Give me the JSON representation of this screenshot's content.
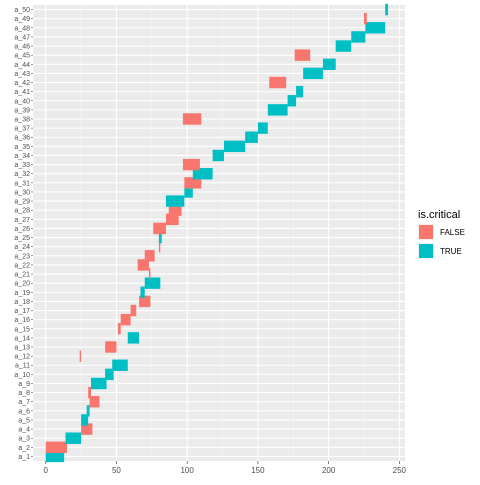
{
  "chart_data": {
    "type": "gantt",
    "xlim": [
      -9,
      254
    ],
    "x_ticks": [
      0,
      50,
      100,
      150,
      200,
      250
    ],
    "grid": true,
    "legend_position": "right",
    "legend": {
      "title": "is.critical",
      "entries": [
        {
          "label": "FALSE",
          "color": "#F8766D"
        },
        {
          "label": "TRUE",
          "color": "#00BFC4"
        }
      ]
    },
    "tasks": [
      {
        "label": "a_1",
        "start": 0,
        "end": 13,
        "critical": true
      },
      {
        "label": "a_2",
        "start": 0,
        "end": 15,
        "critical": false
      },
      {
        "label": "a_3",
        "start": 14,
        "end": 25,
        "critical": true
      },
      {
        "label": "a_4",
        "start": 25,
        "end": 33,
        "critical": false
      },
      {
        "label": "a_5",
        "start": 25,
        "end": 30,
        "critical": true
      },
      {
        "label": "a_6",
        "start": 29,
        "end": 31,
        "critical": true
      },
      {
        "label": "a_7",
        "start": 31,
        "end": 38,
        "critical": false
      },
      {
        "label": "a_8",
        "start": 30,
        "end": 32,
        "critical": false
      },
      {
        "label": "a_9",
        "start": 32,
        "end": 43,
        "critical": true
      },
      {
        "label": "a_10",
        "start": 42,
        "end": 48,
        "critical": true
      },
      {
        "label": "a_11",
        "start": 47,
        "end": 58,
        "critical": true
      },
      {
        "label": "a_12",
        "start": 24,
        "end": 25,
        "critical": false
      },
      {
        "label": "a_13",
        "start": 42,
        "end": 50,
        "critical": false
      },
      {
        "label": "a_14",
        "start": 58,
        "end": 66,
        "critical": true
      },
      {
        "label": "a_15",
        "start": 51,
        "end": 53,
        "critical": false
      },
      {
        "label": "a_16",
        "start": 53,
        "end": 60,
        "critical": false
      },
      {
        "label": "a_17",
        "start": 60,
        "end": 64,
        "critical": false
      },
      {
        "label": "a_18",
        "start": 66,
        "end": 74,
        "critical": false
      },
      {
        "label": "a_19",
        "start": 67,
        "end": 70,
        "critical": true
      },
      {
        "label": "a_20",
        "start": 70,
        "end": 81,
        "critical": true
      },
      {
        "label": "a_21",
        "start": 73,
        "end": 74,
        "critical": false
      },
      {
        "label": "a_22",
        "start": 65,
        "end": 73,
        "critical": false
      },
      {
        "label": "a_23",
        "start": 70,
        "end": 77,
        "critical": false
      },
      {
        "label": "a_24",
        "start": 80,
        "end": 81,
        "critical": false
      },
      {
        "label": "a_25",
        "start": 80,
        "end": 82,
        "critical": true
      },
      {
        "label": "a_26",
        "start": 76,
        "end": 85,
        "critical": false
      },
      {
        "label": "a_27",
        "start": 85,
        "end": 94,
        "critical": false
      },
      {
        "label": "a_28",
        "start": 87,
        "end": 96,
        "critical": false
      },
      {
        "label": "a_29",
        "start": 85,
        "end": 98,
        "critical": true
      },
      {
        "label": "a_30",
        "start": 98,
        "end": 104,
        "critical": true
      },
      {
        "label": "a_31",
        "start": 98,
        "end": 110,
        "critical": false
      },
      {
        "label": "a_32",
        "start": 104,
        "end": 118,
        "critical": true
      },
      {
        "label": "a_33",
        "start": 97,
        "end": 109,
        "critical": false
      },
      {
        "label": "a_34",
        "start": 118,
        "end": 126,
        "critical": true
      },
      {
        "label": "a_35",
        "start": 126,
        "end": 141,
        "critical": true
      },
      {
        "label": "a_36",
        "start": 141,
        "end": 150,
        "critical": true
      },
      {
        "label": "a_37",
        "start": 150,
        "end": 157,
        "critical": true
      },
      {
        "label": "a_38",
        "start": 97,
        "end": 110,
        "critical": false
      },
      {
        "label": "a_39",
        "start": 157,
        "end": 171,
        "critical": true
      },
      {
        "label": "a_40",
        "start": 171,
        "end": 177,
        "critical": true
      },
      {
        "label": "a_41",
        "start": 177,
        "end": 182,
        "critical": true
      },
      {
        "label": "a_42",
        "start": 158,
        "end": 170,
        "critical": false
      },
      {
        "label": "a_43",
        "start": 182,
        "end": 196,
        "critical": true
      },
      {
        "label": "a_44",
        "start": 196,
        "end": 205,
        "critical": true
      },
      {
        "label": "a_45",
        "start": 176,
        "end": 187,
        "critical": false
      },
      {
        "label": "a_46",
        "start": 205,
        "end": 216,
        "critical": true
      },
      {
        "label": "a_47",
        "start": 216,
        "end": 226,
        "critical": true
      },
      {
        "label": "a_48",
        "start": 226,
        "end": 240,
        "critical": true
      },
      {
        "label": "a_49",
        "start": 225,
        "end": 227,
        "critical": false
      },
      {
        "label": "a_50",
        "start": 240,
        "end": 242,
        "critical": true
      }
    ]
  }
}
